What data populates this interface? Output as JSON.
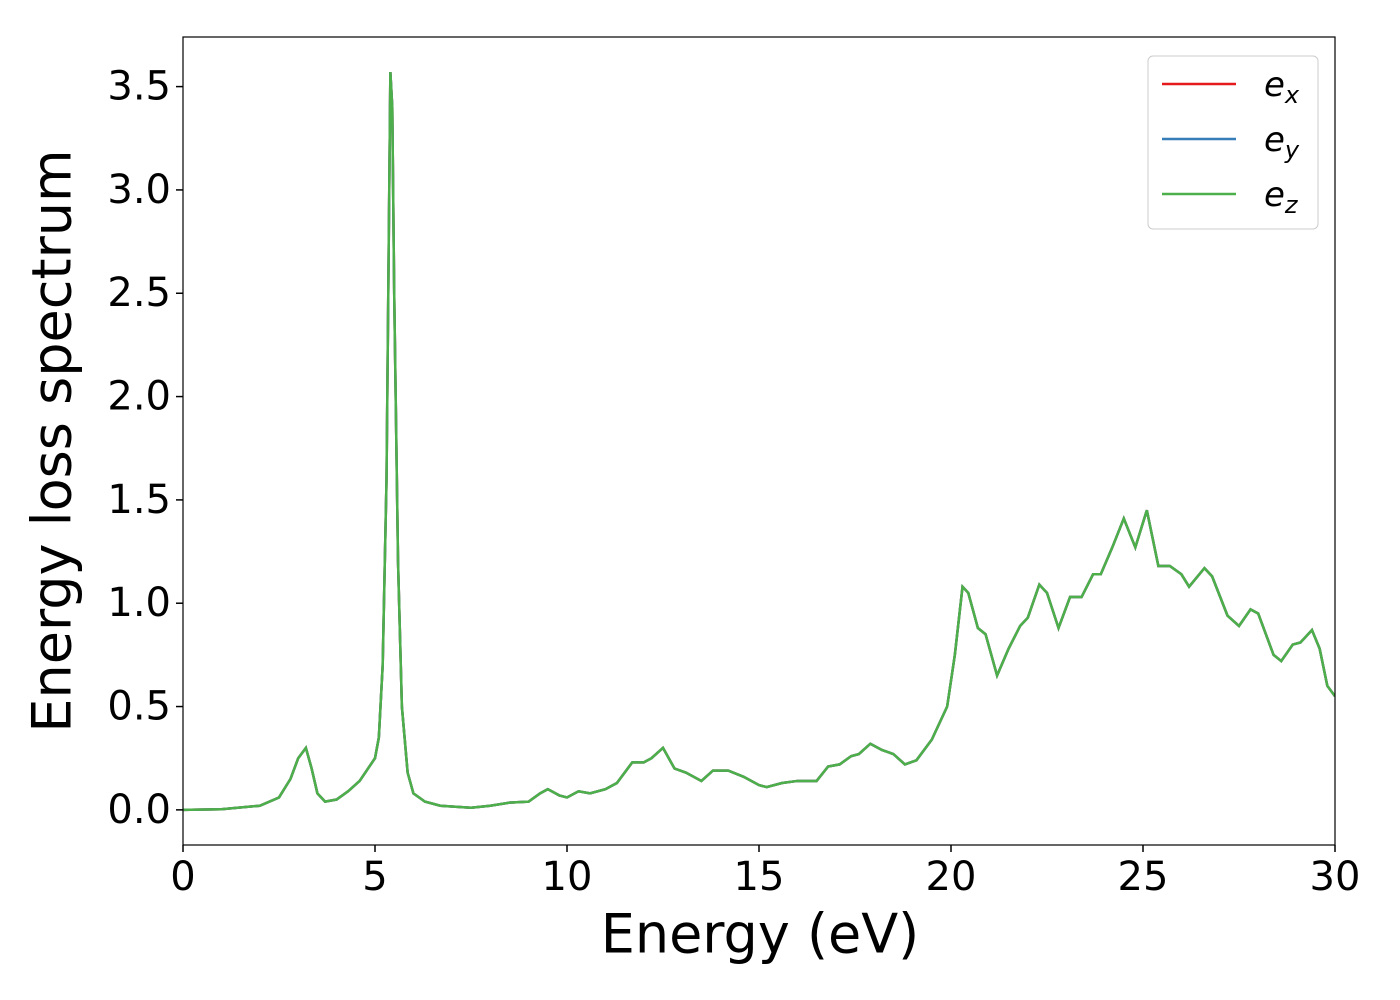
{
  "chart_data": {
    "type": "line",
    "xlabel": "Energy (eV)",
    "ylabel": "Energy loss spectrum",
    "x": [
      0,
      1,
      2,
      2.5,
      2.8,
      3.0,
      3.2,
      3.35,
      3.5,
      3.7,
      4.0,
      4.3,
      4.6,
      5.0,
      5.1,
      5.2,
      5.3,
      5.4,
      5.45,
      5.5,
      5.6,
      5.7,
      5.85,
      6.0,
      6.3,
      6.7,
      7.5,
      8.0,
      8.5,
      9.0,
      9.3,
      9.5,
      9.8,
      10.0,
      10.3,
      10.6,
      11.0,
      11.3,
      11.7,
      12.0,
      12.2,
      12.5,
      12.8,
      13.1,
      13.5,
      13.8,
      14.2,
      14.6,
      15.0,
      15.2,
      15.6,
      16.0,
      16.5,
      16.8,
      17.1,
      17.4,
      17.6,
      17.9,
      18.2,
      18.5,
      18.8,
      19.1,
      19.5,
      19.9,
      20.1,
      20.3,
      20.45,
      20.7,
      20.9,
      21.2,
      21.5,
      21.8,
      22.0,
      22.3,
      22.5,
      22.8,
      23.1,
      23.4,
      23.7,
      23.9,
      24.2,
      24.5,
      24.8,
      25.1,
      25.4,
      25.7,
      26.0,
      26.2,
      26.6,
      26.8,
      27.2,
      27.5,
      27.8,
      28.0,
      28.4,
      28.6,
      28.9,
      29.1,
      29.4,
      29.6,
      29.8,
      30.0
    ],
    "series": [
      {
        "name": "e_x",
        "color": "#e41a1c",
        "values": [
          0,
          0.003,
          0.02,
          0.06,
          0.15,
          0.25,
          0.3,
          0.2,
          0.08,
          0.04,
          0.05,
          0.09,
          0.14,
          0.25,
          0.35,
          0.7,
          1.6,
          3.57,
          3.4,
          2.5,
          1.2,
          0.5,
          0.18,
          0.08,
          0.04,
          0.02,
          0.01,
          0.02,
          0.035,
          0.04,
          0.08,
          0.1,
          0.07,
          0.06,
          0.09,
          0.08,
          0.1,
          0.13,
          0.23,
          0.23,
          0.25,
          0.3,
          0.2,
          0.18,
          0.14,
          0.19,
          0.19,
          0.16,
          0.12,
          0.11,
          0.13,
          0.14,
          0.14,
          0.21,
          0.22,
          0.26,
          0.27,
          0.32,
          0.29,
          0.27,
          0.22,
          0.24,
          0.34,
          0.5,
          0.75,
          1.08,
          1.05,
          0.88,
          0.85,
          0.65,
          0.78,
          0.89,
          0.93,
          1.09,
          1.05,
          0.88,
          1.03,
          1.03,
          1.14,
          1.14,
          1.27,
          1.41,
          1.27,
          1.45,
          1.18,
          1.18,
          1.14,
          1.08,
          1.17,
          1.13,
          0.94,
          0.89,
          0.97,
          0.95,
          0.75,
          0.72,
          0.8,
          0.81,
          0.87,
          0.78,
          0.6,
          0.55
        ]
      },
      {
        "name": "e_y",
        "color": "#377eb8",
        "values": [
          0,
          0.003,
          0.02,
          0.06,
          0.15,
          0.25,
          0.3,
          0.2,
          0.08,
          0.04,
          0.05,
          0.09,
          0.14,
          0.25,
          0.35,
          0.7,
          1.6,
          3.57,
          3.4,
          2.5,
          1.2,
          0.5,
          0.18,
          0.08,
          0.04,
          0.02,
          0.01,
          0.02,
          0.035,
          0.04,
          0.08,
          0.1,
          0.07,
          0.06,
          0.09,
          0.08,
          0.1,
          0.13,
          0.23,
          0.23,
          0.25,
          0.3,
          0.2,
          0.18,
          0.14,
          0.19,
          0.19,
          0.16,
          0.12,
          0.11,
          0.13,
          0.14,
          0.14,
          0.21,
          0.22,
          0.26,
          0.27,
          0.32,
          0.29,
          0.27,
          0.22,
          0.24,
          0.34,
          0.5,
          0.75,
          1.08,
          1.05,
          0.88,
          0.85,
          0.65,
          0.78,
          0.89,
          0.93,
          1.09,
          1.05,
          0.88,
          1.03,
          1.03,
          1.14,
          1.14,
          1.27,
          1.41,
          1.27,
          1.45,
          1.18,
          1.18,
          1.14,
          1.08,
          1.17,
          1.13,
          0.94,
          0.89,
          0.97,
          0.95,
          0.75,
          0.72,
          0.8,
          0.81,
          0.87,
          0.78,
          0.6,
          0.55
        ]
      },
      {
        "name": "e_z",
        "color": "#4daf4a",
        "values": [
          0,
          0.003,
          0.02,
          0.06,
          0.15,
          0.25,
          0.3,
          0.2,
          0.08,
          0.04,
          0.05,
          0.09,
          0.14,
          0.25,
          0.35,
          0.7,
          1.6,
          3.57,
          3.4,
          2.5,
          1.2,
          0.5,
          0.18,
          0.08,
          0.04,
          0.02,
          0.01,
          0.02,
          0.035,
          0.04,
          0.08,
          0.1,
          0.07,
          0.06,
          0.09,
          0.08,
          0.1,
          0.13,
          0.23,
          0.23,
          0.25,
          0.3,
          0.2,
          0.18,
          0.14,
          0.19,
          0.19,
          0.16,
          0.12,
          0.11,
          0.13,
          0.14,
          0.14,
          0.21,
          0.22,
          0.26,
          0.27,
          0.32,
          0.29,
          0.27,
          0.22,
          0.24,
          0.34,
          0.5,
          0.75,
          1.08,
          1.05,
          0.88,
          0.85,
          0.65,
          0.78,
          0.89,
          0.93,
          1.09,
          1.05,
          0.88,
          1.03,
          1.03,
          1.14,
          1.14,
          1.27,
          1.41,
          1.27,
          1.45,
          1.18,
          1.18,
          1.14,
          1.08,
          1.17,
          1.13,
          0.94,
          0.89,
          0.97,
          0.95,
          0.75,
          0.72,
          0.8,
          0.81,
          0.87,
          0.78,
          0.6,
          0.55
        ]
      }
    ],
    "xlim": [
      0,
      30
    ],
    "xticks": [
      0,
      5,
      10,
      15,
      20,
      25,
      30
    ],
    "ylim": [
      -0.17,
      3.74
    ],
    "yticks": [
      {
        "value": 0,
        "label": "0.0"
      },
      {
        "value": 0.5,
        "label": "0.5"
      },
      {
        "value": 1,
        "label": "1.0"
      },
      {
        "value": 1.5,
        "label": "1.5"
      },
      {
        "value": 2,
        "label": "2.0"
      },
      {
        "value": 2.5,
        "label": "2.5"
      },
      {
        "value": 3,
        "label": "3.0"
      },
      {
        "value": 3.5,
        "label": "3.5"
      }
    ],
    "legend": "upper right",
    "grid": false
  }
}
